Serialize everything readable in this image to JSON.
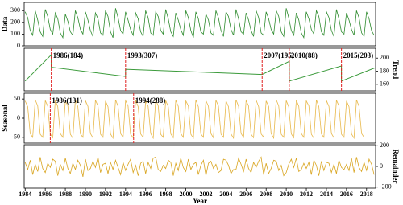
{
  "chart_data": {
    "type": "line",
    "xlabel": "Year",
    "xlim": [
      1983.9,
      2018.9
    ],
    "xticks": [
      1984,
      1986,
      1988,
      1990,
      1992,
      1994,
      1996,
      1998,
      2000,
      2002,
      2004,
      2006,
      2008,
      2010,
      2012,
      2014,
      2016,
      2018
    ],
    "x": [
      1984,
      1984.25,
      1984.5,
      1984.75,
      1985,
      1985.25,
      1985.5,
      1985.75,
      1986,
      1986.25,
      1986.5,
      1986.75,
      1987,
      1987.25,
      1987.5,
      1987.75,
      1988,
      1988.25,
      1988.5,
      1988.75,
      1989,
      1989.25,
      1989.5,
      1989.75,
      1990,
      1990.25,
      1990.5,
      1990.75,
      1991,
      1991.25,
      1991.5,
      1991.75,
      1992,
      1992.25,
      1992.5,
      1992.75,
      1993,
      1993.25,
      1993.5,
      1993.75,
      1994,
      1994.25,
      1994.5,
      1994.75,
      1995,
      1995.25,
      1995.5,
      1995.75,
      1996,
      1996.25,
      1996.5,
      1996.75,
      1997,
      1997.25,
      1997.5,
      1997.75,
      1998,
      1998.25,
      1998.5,
      1998.75,
      1999,
      1999.25,
      1999.5,
      1999.75,
      2000,
      2000.25,
      2000.5,
      2000.75,
      2001,
      2001.25,
      2001.5,
      2001.75,
      2002,
      2002.25,
      2002.5,
      2002.75,
      2003,
      2003.25,
      2003.5,
      2003.75,
      2004,
      2004.25,
      2004.5,
      2004.75,
      2005,
      2005.25,
      2005.5,
      2005.75,
      2006,
      2006.25,
      2006.5,
      2006.75,
      2007,
      2007.25,
      2007.5,
      2007.75,
      2008,
      2008.25,
      2008.5,
      2008.75,
      2009,
      2009.25,
      2009.5,
      2009.75,
      2010,
      2010.25,
      2010.5,
      2010.75,
      2011,
      2011.25,
      2011.5,
      2011.75,
      2012,
      2012.25,
      2012.5,
      2012.75,
      2013,
      2013.25,
      2013.5,
      2013.75,
      2014,
      2014.25,
      2014.5,
      2014.75,
      2015,
      2015.25,
      2015.5,
      2015.75,
      2016,
      2016.25,
      2016.5,
      2016.75,
      2017,
      2017.25,
      2017.5,
      2017.75,
      2018,
      2018.25,
      2018.5,
      2018.75
    ],
    "panels": [
      {
        "ylabel": "Data",
        "axis": "left",
        "color": "#2e8b2e",
        "ylim": [
          0,
          370
        ],
        "yticks": [
          0,
          100,
          200,
          300
        ],
        "values": [
          290,
          240,
          130,
          90,
          300,
          220,
          120,
          80,
          310,
          250,
          140,
          100,
          280,
          230,
          110,
          70,
          270,
          210,
          120,
          90,
          300,
          240,
          140,
          100,
          290,
          220,
          130,
          80,
          280,
          230,
          110,
          90,
          300,
          250,
          120,
          70,
          320,
          240,
          130,
          100,
          290,
          220,
          140,
          90,
          280,
          230,
          120,
          80,
          300,
          240,
          110,
          90,
          290,
          250,
          130,
          100,
          310,
          230,
          120,
          80,
          280,
          220,
          140,
          90,
          300,
          240,
          130,
          70,
          290,
          230,
          120,
          100,
          270,
          220,
          110,
          90,
          300,
          240,
          130,
          80,
          290,
          250,
          140,
          90,
          310,
          230,
          120,
          100,
          280,
          220,
          130,
          80,
          300,
          240,
          110,
          90,
          290,
          230,
          140,
          100,
          300,
          250,
          120,
          80,
          320,
          240,
          130,
          90,
          280,
          220,
          110,
          70,
          290,
          230,
          140,
          100,
          300,
          250,
          120,
          90,
          290,
          240,
          130,
          80,
          310,
          230,
          120,
          100,
          280,
          220,
          140,
          90,
          300,
          240,
          110,
          80,
          290,
          230,
          130,
          90
        ]
      },
      {
        "ylabel": "Trend",
        "axis": "right",
        "color": "#3a9a3a",
        "ylim": [
          150,
          215
        ],
        "yticks": [
          160,
          180,
          200
        ],
        "x": [
          1984,
          1986.6,
          1986.6,
          1994,
          1994,
          2007.6,
          2007.6,
          2010.3,
          2010.3,
          2015.5,
          2015.5,
          2018.8
        ],
        "values": [
          165,
          205,
          186,
          172,
          183,
          175,
          175,
          195,
          165,
          188,
          165,
          185
        ],
        "breakpoints": [
          1986.6,
          1994,
          2007.6,
          2010.3,
          2015.5
        ],
        "annotations": [
          "1986(184)",
          "1993(307)",
          "2007(195)",
          "2010(88)",
          "2015(203)"
        ]
      },
      {
        "ylabel": "Seasonal",
        "axis": "left",
        "color": "#e8b84a",
        "ylim": [
          -65,
          65
        ],
        "yticks": [
          -50,
          0,
          50
        ],
        "breakpoints": [
          1986.5,
          1994.8
        ],
        "annotations": [
          "1986(131)",
          "1994(288)"
        ],
        "values": [
          45,
          30,
          -40,
          -50,
          48,
          32,
          -42,
          -50,
          46,
          31,
          -41,
          -51,
          47,
          30,
          -40,
          -50,
          45,
          32,
          -42,
          -52,
          48,
          30,
          -41,
          -50,
          46,
          31,
          -40,
          -51,
          47,
          32,
          -42,
          -50,
          45,
          30,
          -41,
          -52,
          48,
          31,
          -40,
          -50,
          46,
          32,
          -42,
          -51,
          47,
          30,
          -41,
          -50,
          45,
          31,
          -40,
          -52,
          48,
          32,
          -42,
          -50,
          46,
          30,
          -41,
          -51,
          47,
          31,
          -40,
          -50,
          45,
          32,
          -42,
          -52,
          48,
          30,
          -41,
          -50,
          46,
          31,
          -40,
          -51,
          47,
          32,
          -42,
          -50,
          45,
          30,
          -41,
          -52,
          48,
          31,
          -40,
          -50,
          46,
          32,
          -42,
          -51,
          47,
          30,
          -41,
          -50,
          45,
          31,
          -40,
          -52,
          48,
          32,
          -42,
          -50,
          46,
          30,
          -41,
          -51,
          47,
          31,
          -40,
          -50,
          45,
          32,
          -42,
          -52,
          48,
          30,
          -41,
          -50,
          46,
          31,
          -40,
          -51,
          47,
          32,
          -42,
          -50,
          45,
          30,
          -41,
          -52,
          48,
          31,
          -40,
          -50
        ]
      },
      {
        "ylabel": "Remainder",
        "axis": "right",
        "color": "#d9a520",
        "ylim": [
          -210,
          210
        ],
        "yticks": [
          -200,
          0,
          200
        ],
        "values": [
          40,
          -30,
          60,
          -80,
          20,
          -50,
          90,
          -20,
          -60,
          30,
          -10,
          70,
          50,
          -90,
          20,
          -40,
          80,
          -20,
          -70,
          30,
          -30,
          60,
          10,
          -100,
          70,
          -40,
          -20,
          50,
          -10,
          90,
          -60,
          20,
          30,
          -70,
          40,
          -30,
          60,
          -10,
          -80,
          40,
          -40,
          20,
          70,
          -60,
          10,
          -90,
          30,
          50,
          -70,
          40,
          -20,
          80,
          90,
          -30,
          -50,
          10,
          -20,
          60,
          40,
          -90,
          30,
          -40,
          80,
          -10,
          -50,
          70,
          -30,
          20,
          40,
          -80,
          10,
          60,
          -90,
          30,
          50,
          -20,
          20,
          -60,
          -40,
          70,
          60,
          10,
          -70,
          -30,
          -30,
          80,
          20,
          -50,
          70,
          -20,
          -60,
          40,
          -10,
          50,
          90,
          -80,
          30,
          -70,
          -20,
          60,
          50,
          -40,
          10,
          -90,
          -60,
          20,
          70,
          -10,
          80,
          -50,
          -30,
          30,
          -20,
          40,
          -80,
          60,
          10,
          -90,
          50,
          -40,
          40,
          30,
          -60,
          20,
          -70,
          60,
          -10,
          -30,
          20,
          -40,
          80,
          -60,
          90,
          -10,
          -50,
          40,
          -40,
          70,
          20,
          -80
        ]
      }
    ]
  }
}
